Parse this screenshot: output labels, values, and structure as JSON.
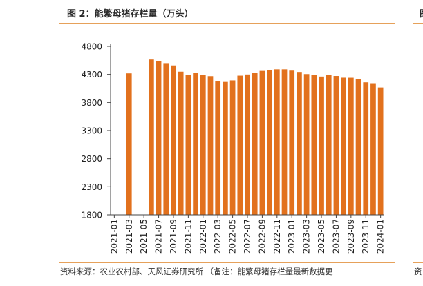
{
  "panel": {
    "title": "图 2：能繁母猪存栏量（万头）",
    "source": "资料来源：农业农村部、天风证券研究所 （备注：能繁母猪存栏量最新数据更",
    "next_panel_title": "图",
    "next_panel_source": "资"
  },
  "chart_data": {
    "type": "bar",
    "title": "能繁母猪存栏量（万头）",
    "xlabel": "",
    "ylabel": "",
    "ylim": [
      1800,
      4800
    ],
    "yticks": [
      1800,
      2300,
      2800,
      3300,
      3800,
      4300,
      4800
    ],
    "grid": false,
    "bar_color": "#e2711d",
    "axis_color": "#444444",
    "categories": [
      "2021-01",
      "2021-02",
      "2021-03",
      "2021-04",
      "2021-05",
      "2021-06",
      "2021-07",
      "2021-08",
      "2021-09",
      "2021-10",
      "2021-11",
      "2021-12",
      "2022-01",
      "2022-02",
      "2022-03",
      "2022-04",
      "2022-05",
      "2022-06",
      "2022-07",
      "2022-08",
      "2022-09",
      "2022-10",
      "2022-11",
      "2022-12",
      "2023-01",
      "2023-02",
      "2023-03",
      "2023-04",
      "2023-05",
      "2023-06",
      "2023-07",
      "2023-08",
      "2023-09",
      "2023-10",
      "2023-11",
      "2023-12",
      "2024-01"
    ],
    "xticks": [
      "2021-01",
      "2021-03",
      "2021-05",
      "2021-07",
      "2021-09",
      "2021-11",
      "2022-01",
      "2022-03",
      "2022-05",
      "2022-07",
      "2022-09",
      "2022-11",
      "2023-01",
      "2023-03",
      "2023-05",
      "2023-07",
      "2023-09",
      "2023-11",
      "2024-01"
    ],
    "values": [
      null,
      null,
      4318,
      null,
      null,
      4564,
      4539,
      4500,
      4459,
      4348,
      4296,
      4329,
      4290,
      4268,
      4185,
      4177,
      4192,
      4277,
      4298,
      4324,
      4362,
      4379,
      4390,
      4390,
      4367,
      4343,
      4305,
      4284,
      4261,
      4296,
      4271,
      4241,
      4240,
      4210,
      4158,
      4142,
      4067
    ]
  }
}
